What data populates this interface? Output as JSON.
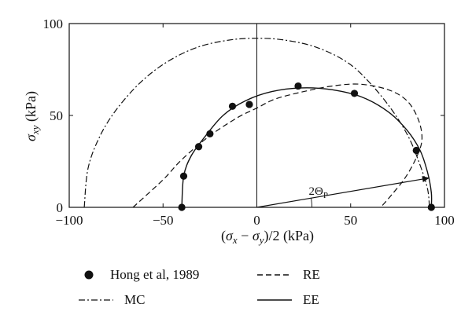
{
  "chart_data": {
    "type": "scatter",
    "title": "",
    "xlabel": "(σx − σy)/2 (kPa)",
    "ylabel": "σxy (kPa)",
    "xlim": [
      -100,
      100
    ],
    "ylim": [
      0,
      100
    ],
    "xticks": [
      -100,
      -50,
      0,
      50,
      100
    ],
    "yticks": [
      0,
      50,
      100
    ],
    "xtick_labels": [
      "−100",
      "−50",
      "0",
      "50",
      "100"
    ],
    "ytick_labels": [
      "0",
      "50",
      "100"
    ],
    "series": [
      {
        "name": "Hong et al, 1989",
        "style": "markers",
        "points": [
          [
            -40,
            0
          ],
          [
            -39,
            17
          ],
          [
            -31,
            33
          ],
          [
            -25,
            40
          ],
          [
            -13,
            55
          ],
          [
            -4,
            56
          ],
          [
            22,
            66
          ],
          [
            52,
            62
          ],
          [
            85,
            31
          ],
          [
            93,
            0
          ]
        ]
      },
      {
        "name": "RE",
        "style": "dashed",
        "points": [
          [
            -66,
            0
          ],
          [
            -50,
            15
          ],
          [
            -40,
            26
          ],
          [
            -25,
            39
          ],
          [
            -10,
            49
          ],
          [
            0,
            54
          ],
          [
            10,
            59
          ],
          [
            25,
            63
          ],
          [
            40,
            66
          ],
          [
            55,
            67
          ],
          [
            70,
            64
          ],
          [
            80,
            58
          ],
          [
            86,
            48
          ],
          [
            88,
            37
          ],
          [
            85,
            27
          ],
          [
            79,
            16
          ],
          [
            72,
            7
          ],
          [
            66,
            0
          ]
        ]
      },
      {
        "name": "MC",
        "style": "dashdot",
        "points": [
          [
            -92,
            0
          ],
          [
            -90,
            21
          ],
          [
            -84,
            38
          ],
          [
            -75,
            53
          ],
          [
            -62,
            68
          ],
          [
            -48,
            79
          ],
          [
            -32,
            87
          ],
          [
            -15,
            91
          ],
          [
            0,
            92
          ],
          [
            15,
            91
          ],
          [
            32,
            87
          ],
          [
            48,
            79
          ],
          [
            60,
            68
          ],
          [
            72,
            53
          ],
          [
            81,
            38
          ],
          [
            87,
            23
          ],
          [
            91,
            10
          ],
          [
            92,
            0
          ]
        ]
      },
      {
        "name": "EE",
        "style": "solid",
        "points": [
          [
            -40,
            0
          ],
          [
            -39,
            17
          ],
          [
            -35,
            28
          ],
          [
            -28,
            38
          ],
          [
            -18,
            50
          ],
          [
            -6,
            58
          ],
          [
            8,
            63
          ],
          [
            24,
            65
          ],
          [
            40,
            64
          ],
          [
            56,
            60
          ],
          [
            70,
            52
          ],
          [
            80,
            42
          ],
          [
            87,
            31
          ],
          [
            91,
            19
          ],
          [
            93,
            8
          ],
          [
            93,
            0
          ]
        ]
      }
    ],
    "annotations": [
      {
        "text": "2Θ",
        "subscript": "P",
        "from": [
          0,
          0
        ],
        "to": [
          92,
          16
        ],
        "type": "arrow-with-angle"
      }
    ],
    "grid": false,
    "legend_placement": "below"
  }
}
